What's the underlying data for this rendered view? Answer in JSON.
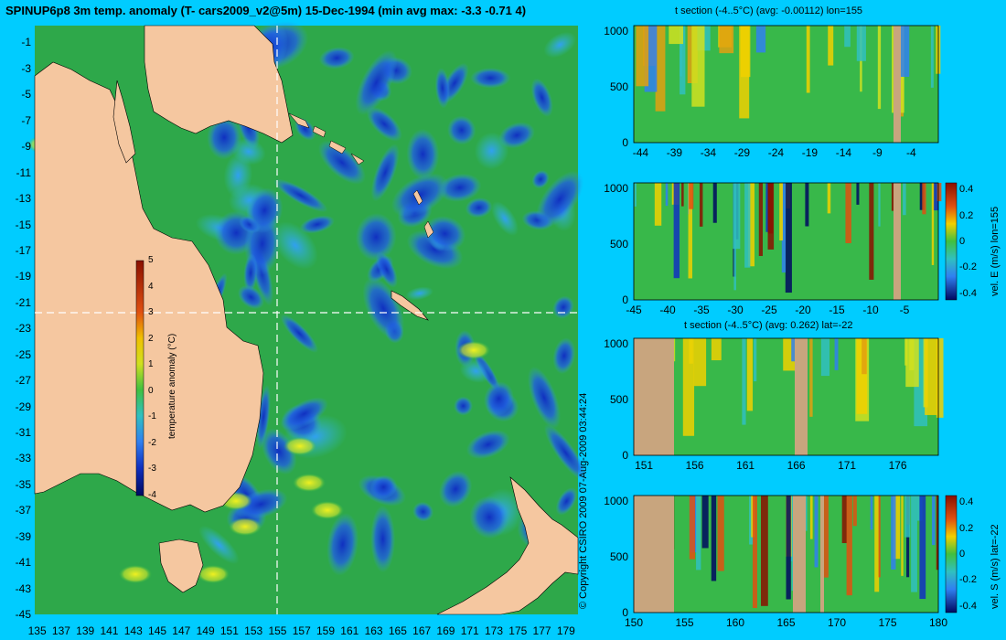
{
  "main_title": "SPINUP6p8 3m temp. anomaly (T- cars2009_v2@5m) 15-Dec-1994 (min avg max: -3.3 -0.71 4)",
  "copyright": "© Copyright CSIRO 2009   07-Aug-2009 03:44:24",
  "colors": {
    "background": "#00ccff",
    "land": "#f5c7a0",
    "section_land": "#c8a57e",
    "crosshair": "#ffffff"
  },
  "chart_data": [
    {
      "type": "heatmap",
      "name": "map",
      "title": "SPINUP6p8 3m temp. anomaly (T- cars2009_v2@5m) 15-Dec-1994 (min avg max: -3.3 -0.71 4)",
      "x_ticks": [
        "135",
        "137",
        "139",
        "141",
        "143",
        "145",
        "147",
        "149",
        "151",
        "153",
        "155",
        "157",
        "159",
        "161",
        "163",
        "165",
        "167",
        "169",
        "171",
        "173",
        "175",
        "177",
        "179"
      ],
      "y_ticks": [
        "-1",
        "-3",
        "-5",
        "-7",
        "-9",
        "-11",
        "-13",
        "-15",
        "-17",
        "-19",
        "-21",
        "-23",
        "-25",
        "-27",
        "-29",
        "-31",
        "-33",
        "-35",
        "-37",
        "-39",
        "-41",
        "-43",
        "-45"
      ],
      "xlim": [
        134.8,
        180
      ],
      "ylim": [
        -45,
        0.3
      ],
      "crosshair": {
        "lon": 155,
        "lat": -22
      },
      "colorbar": {
        "label": "temperature anomaly (°C)",
        "ticks": [
          "5",
          "4",
          "3",
          "2",
          "1",
          "0",
          "-1",
          "-2",
          "-3",
          "-4"
        ],
        "range": [
          -4,
          5
        ]
      }
    },
    {
      "type": "heatmap",
      "name": "t-section-lon",
      "title": "t section (-4..5°C) (avg: -0.00112) lon=155",
      "x_ticks": [
        "-44",
        "-39",
        "-34",
        "-29",
        "-24",
        "-19",
        "-14",
        "-9",
        "-4"
      ],
      "y_ticks": [
        "0",
        "500",
        "1000"
      ],
      "xlim": [
        -45,
        0
      ],
      "ylim": [
        1050,
        0
      ]
    },
    {
      "type": "heatmap",
      "name": "vel-e-section",
      "title": "",
      "x_ticks": [
        "-45",
        "-40",
        "-35",
        "-30",
        "-25",
        "-20",
        "-15",
        "-10",
        "-5"
      ],
      "y_ticks": [
        "0",
        "500",
        "1000"
      ],
      "xlim": [
        -45,
        0
      ],
      "ylim": [
        1050,
        0
      ],
      "colorbar": {
        "label": "vel. E (m/s) lon=155",
        "ticks": [
          "0.4",
          "0.2",
          "0",
          "-0.2",
          "-0.4"
        ],
        "range": [
          -0.45,
          0.45
        ]
      }
    },
    {
      "type": "heatmap",
      "name": "t-section-lat",
      "title": "t section (-4..5°C) (avg: 0.262) lat=-22",
      "x_ticks": [
        "151",
        "156",
        "161",
        "166",
        "171",
        "176"
      ],
      "y_ticks": [
        "0",
        "500",
        "1000"
      ],
      "xlim": [
        150,
        180
      ],
      "ylim": [
        1050,
        0
      ]
    },
    {
      "type": "heatmap",
      "name": "vel-s-section",
      "title": "",
      "x_ticks": [
        "150",
        "155",
        "160",
        "165",
        "170",
        "175",
        "180"
      ],
      "y_ticks": [
        "0",
        "500",
        "1000"
      ],
      "xlim": [
        150,
        180
      ],
      "ylim": [
        1050,
        0
      ],
      "colorbar": {
        "label": "vel. S (m/s) lat=-22",
        "ticks": [
          "0.4",
          "0.2",
          "0",
          "-0.2",
          "-0.4"
        ],
        "range": [
          -0.45,
          0.45
        ]
      }
    }
  ]
}
